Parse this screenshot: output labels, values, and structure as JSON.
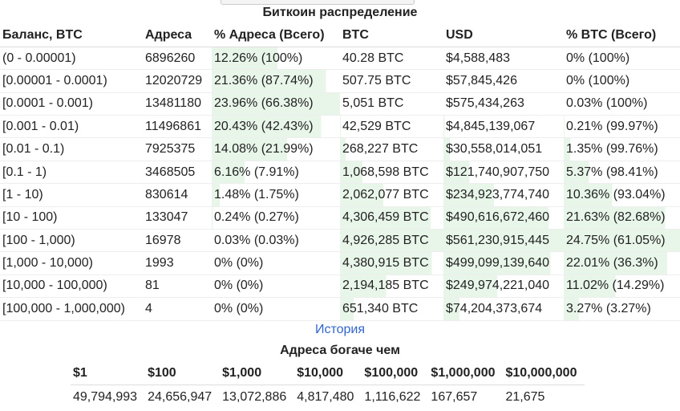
{
  "title": "Биткоин распределение",
  "table": {
    "header": [
      "Баланс, BTC",
      "Адреса",
      "% Адреса (Всего)",
      "BTC",
      "USD",
      "% BTC (Всего)"
    ],
    "rows": [
      [
        "(0 - 0.00001)",
        "6896260",
        "12.26% (100%)",
        "40.28 BTC",
        "$4,588,483",
        "0% (100%)"
      ],
      [
        "[0.00001 - 0.0001)",
        "12020729",
        "21.36% (87.74%)",
        "507.75 BTC",
        "$57,845,426",
        "0% (100%)"
      ],
      [
        "[0.0001 - 0.001)",
        "13481180",
        "23.96% (66.38%)",
        "5,051 BTC",
        "$575,434,263",
        "0.03% (100%)"
      ],
      [
        "[0.001 - 0.01)",
        "11496861",
        "20.43% (42.43%)",
        "42,529 BTC",
        "$4,845,139,067",
        "0.21% (99.97%)"
      ],
      [
        "[0.01 - 0.1)",
        "7925375",
        "14.08% (21.99%)",
        "268,227 BTC",
        "$30,558,014,051",
        "1.35% (99.76%)"
      ],
      [
        "[0.1 - 1)",
        "3468505",
        "6.16% (7.91%)",
        "1,068,598 BTC",
        "$121,740,907,750",
        "5.37% (98.41%)"
      ],
      [
        "[1 - 10)",
        "830614",
        "1.48% (1.75%)",
        "2,062,077 BTC",
        "$234,923,774,740",
        "10.36% (93.04%)"
      ],
      [
        "[10 - 100)",
        "133047",
        "0.24% (0.27%)",
        "4,306,459 BTC",
        "$490,616,672,460",
        "21.63% (82.68%)"
      ],
      [
        "[100 - 1,000)",
        "16978",
        "0.03% (0.03%)",
        "4,926,285 BTC",
        "$561,230,915,445",
        "24.75% (61.05%)"
      ],
      [
        "[1,000 - 10,000)",
        "1993",
        "0% (0%)",
        "4,380,915 BTC",
        "$499,099,139,640",
        "22.01% (36.3%)"
      ],
      [
        "[10,000 - 100,000)",
        "81",
        "0% (0%)",
        "2,194,185 BTC",
        "$249,974,221,040",
        "11.02% (14.29%)"
      ],
      [
        "[100,000 - 1,000,000)",
        "4",
        "0% (0%)",
        "651,340 BTC",
        "$74,204,373,674",
        "3.27% (3.27%)"
      ]
    ]
  },
  "link": "История",
  "rich": {
    "title": "Адреса богаче чем",
    "header": [
      "$1",
      "$100",
      "$1,000",
      "$10,000",
      "$100,000",
      "$1,000,000",
      "$10,000,000"
    ],
    "values": [
      "49,794,993",
      "24,656,947",
      "13,072,886",
      "4,817,480",
      "1,116,622",
      "167,657",
      "21,675"
    ]
  }
}
